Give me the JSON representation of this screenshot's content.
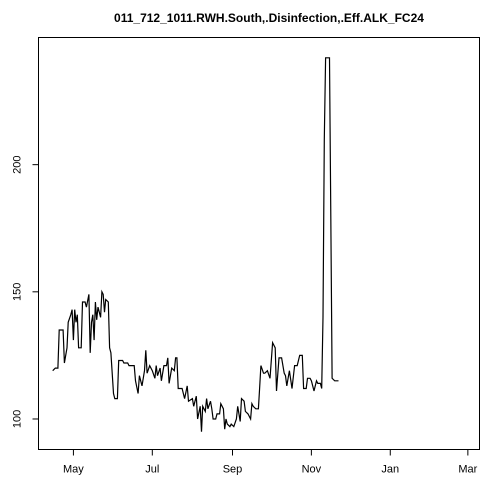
{
  "chart_data": {
    "type": "line",
    "title": "011_712_1011.RWH.South,.Disinfection,.Eff.ALK_FC24",
    "xlabel": "",
    "ylabel": "",
    "x_axis": {
      "tick_labels": [
        "May",
        "Jul",
        "Sep",
        "Nov",
        "Jan",
        "Mar"
      ],
      "tick_values": [
        "2011-05-01",
        "2011-07-01",
        "2011-09-01",
        "2011-11-01",
        "2012-01-01",
        "2012-03-01"
      ],
      "range": [
        "2011-04-04",
        "2012-03-10"
      ]
    },
    "y_axis": {
      "tick_labels": [
        "100",
        "150",
        "200"
      ],
      "tick_values": [
        100,
        150,
        200
      ],
      "range": [
        88,
        250
      ],
      "label_orientation": "rotated"
    },
    "grid": false,
    "legend": "none",
    "series": [
      {
        "color": "#000000",
        "points": [
          [
            "2011-04-15",
            119
          ],
          [
            "2011-04-17",
            120
          ],
          [
            "2011-04-19",
            120
          ],
          [
            "2011-04-20",
            135
          ],
          [
            "2011-04-23",
            135
          ],
          [
            "2011-04-24",
            122
          ],
          [
            "2011-04-26",
            128
          ],
          [
            "2011-04-27",
            138
          ],
          [
            "2011-04-29",
            141
          ],
          [
            "2011-04-30",
            143
          ],
          [
            "2011-05-01",
            131
          ],
          [
            "2011-05-02",
            143
          ],
          [
            "2011-05-03",
            138
          ],
          [
            "2011-05-04",
            141
          ],
          [
            "2011-05-05",
            128
          ],
          [
            "2011-05-07",
            128
          ],
          [
            "2011-05-08",
            146
          ],
          [
            "2011-05-10",
            146
          ],
          [
            "2011-05-11",
            144
          ],
          [
            "2011-05-13",
            149
          ],
          [
            "2011-05-14",
            126
          ],
          [
            "2011-05-15",
            138
          ],
          [
            "2011-05-16",
            141
          ],
          [
            "2011-05-17",
            131
          ],
          [
            "2011-05-18",
            146
          ],
          [
            "2011-05-19",
            139
          ],
          [
            "2011-05-20",
            144
          ],
          [
            "2011-05-22",
            140
          ],
          [
            "2011-05-23",
            150
          ],
          [
            "2011-05-24",
            149
          ],
          [
            "2011-05-25",
            142
          ],
          [
            "2011-05-26",
            147
          ],
          [
            "2011-05-28",
            146
          ],
          [
            "2011-05-29",
            128
          ],
          [
            "2011-05-30",
            126
          ],
          [
            "2011-06-01",
            110
          ],
          [
            "2011-06-02",
            108
          ],
          [
            "2011-06-04",
            108
          ],
          [
            "2011-06-05",
            123
          ],
          [
            "2011-06-08",
            123
          ],
          [
            "2011-06-09",
            122
          ],
          [
            "2011-06-12",
            122
          ],
          [
            "2011-06-13",
            121
          ],
          [
            "2011-06-17",
            121
          ],
          [
            "2011-06-18",
            115
          ],
          [
            "2011-06-20",
            110
          ],
          [
            "2011-06-21",
            117
          ],
          [
            "2011-06-23",
            113
          ],
          [
            "2011-06-25",
            119
          ],
          [
            "2011-06-26",
            127
          ],
          [
            "2011-06-27",
            118
          ],
          [
            "2011-06-29",
            121
          ],
          [
            "2011-07-01",
            119
          ],
          [
            "2011-07-03",
            116
          ],
          [
            "2011-07-04",
            121
          ],
          [
            "2011-07-05",
            117
          ],
          [
            "2011-07-07",
            120
          ],
          [
            "2011-07-08",
            115
          ],
          [
            "2011-07-10",
            121
          ],
          [
            "2011-07-12",
            121
          ],
          [
            "2011-07-13",
            124
          ],
          [
            "2011-07-14",
            114
          ],
          [
            "2011-07-16",
            120
          ],
          [
            "2011-07-18",
            119
          ],
          [
            "2011-07-19",
            124
          ],
          [
            "2011-07-20",
            124
          ],
          [
            "2011-07-21",
            112
          ],
          [
            "2011-07-24",
            112
          ],
          [
            "2011-07-26",
            108
          ],
          [
            "2011-07-28",
            113
          ],
          [
            "2011-07-29",
            107
          ],
          [
            "2011-08-01",
            108
          ],
          [
            "2011-08-02",
            105
          ],
          [
            "2011-08-04",
            109
          ],
          [
            "2011-08-05",
            100
          ],
          [
            "2011-08-07",
            105
          ],
          [
            "2011-08-08",
            95
          ],
          [
            "2011-08-09",
            105
          ],
          [
            "2011-08-11",
            103
          ],
          [
            "2011-08-12",
            108
          ],
          [
            "2011-08-13",
            104
          ],
          [
            "2011-08-15",
            107
          ],
          [
            "2011-08-16",
            104
          ],
          [
            "2011-08-17",
            100
          ],
          [
            "2011-08-19",
            100
          ],
          [
            "2011-08-20",
            102
          ],
          [
            "2011-08-22",
            102
          ],
          [
            "2011-08-23",
            106
          ],
          [
            "2011-08-25",
            104
          ],
          [
            "2011-08-26",
            96
          ],
          [
            "2011-08-27",
            100
          ],
          [
            "2011-08-28",
            98
          ],
          [
            "2011-08-30",
            97
          ],
          [
            "2011-08-31",
            98
          ],
          [
            "2011-09-02",
            97
          ],
          [
            "2011-09-04",
            100
          ],
          [
            "2011-09-05",
            105
          ],
          [
            "2011-09-07",
            99
          ],
          [
            "2011-09-08",
            108
          ],
          [
            "2011-09-10",
            107
          ],
          [
            "2011-09-11",
            103
          ],
          [
            "2011-09-13",
            102
          ],
          [
            "2011-09-15",
            100
          ],
          [
            "2011-09-16",
            106
          ],
          [
            "2011-09-17",
            105
          ],
          [
            "2011-09-19",
            104
          ],
          [
            "2011-09-21",
            104
          ],
          [
            "2011-09-22",
            112
          ],
          [
            "2011-09-23",
            121
          ],
          [
            "2011-09-25",
            118
          ],
          [
            "2011-09-26",
            118
          ],
          [
            "2011-09-28",
            119
          ],
          [
            "2011-09-30",
            116
          ],
          [
            "2011-10-02",
            130
          ],
          [
            "2011-10-04",
            128
          ],
          [
            "2011-10-05",
            111
          ],
          [
            "2011-10-07",
            124
          ],
          [
            "2011-10-09",
            124
          ],
          [
            "2011-10-11",
            118
          ],
          [
            "2011-10-12",
            117
          ],
          [
            "2011-10-13",
            113
          ],
          [
            "2011-10-15",
            119
          ],
          [
            "2011-10-17",
            112
          ],
          [
            "2011-10-19",
            121
          ],
          [
            "2011-10-21",
            121
          ],
          [
            "2011-10-23",
            125
          ],
          [
            "2011-10-25",
            125
          ],
          [
            "2011-10-26",
            112
          ],
          [
            "2011-10-28",
            112
          ],
          [
            "2011-10-29",
            116
          ],
          [
            "2011-10-31",
            116
          ],
          [
            "2011-11-01",
            115
          ],
          [
            "2011-11-03",
            111
          ],
          [
            "2011-11-05",
            115
          ],
          [
            "2011-11-06",
            114
          ],
          [
            "2011-11-08",
            114
          ],
          [
            "2011-11-09",
            112
          ],
          [
            "2011-11-10",
            140
          ],
          [
            "2011-11-11",
            210
          ],
          [
            "2011-11-12",
            242
          ],
          [
            "2011-11-15",
            242
          ],
          [
            "2011-11-16",
            180
          ],
          [
            "2011-11-17",
            116
          ],
          [
            "2011-11-19",
            115
          ],
          [
            "2011-11-22",
            115
          ]
        ]
      }
    ]
  }
}
